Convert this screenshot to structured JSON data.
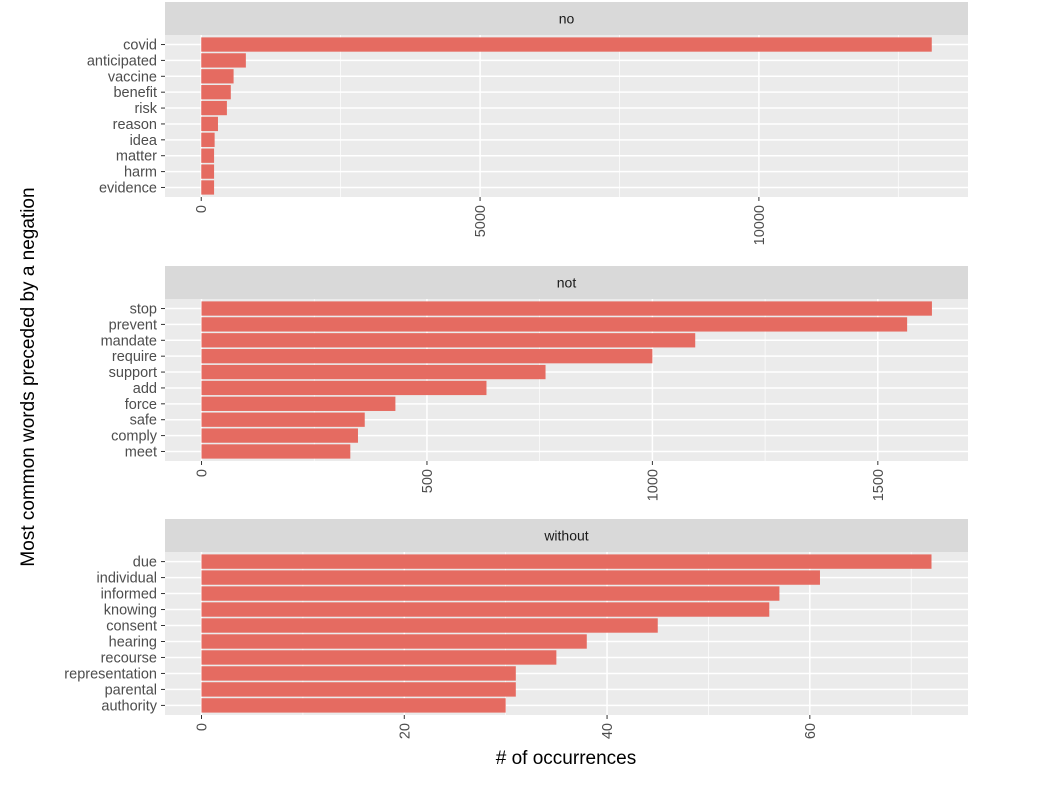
{
  "chart_data": {
    "type": "bar",
    "orientation": "horizontal",
    "ylabel": "Most common words preceded by a negation",
    "xlabel": "# of occurrences",
    "bar_color": "#E56B61",
    "panel_bg": "#EBEBEB",
    "strip_bg": "#D9D9D9",
    "grid": true,
    "facets": [
      {
        "title": "no",
        "categories": [
          "covid",
          "anticipated",
          "vaccine",
          "benefit",
          "risk",
          "reason",
          "idea",
          "matter",
          "harm",
          "evidence"
        ],
        "values": [
          13100,
          800,
          580,
          530,
          460,
          300,
          240,
          230,
          230,
          230
        ],
        "xlim": [
          -650,
          13750
        ],
        "xticks": [
          0,
          5000,
          10000
        ]
      },
      {
        "title": "not",
        "categories": [
          "stop",
          "prevent",
          "mandate",
          "require",
          "support",
          "add",
          "force",
          "safe",
          "comply",
          "meet"
        ],
        "values": [
          1620,
          1565,
          1095,
          1000,
          763,
          632,
          430,
          362,
          347,
          330
        ],
        "xlim": [
          -81,
          1700
        ],
        "xticks": [
          0,
          500,
          1000,
          1500
        ]
      },
      {
        "title": "without",
        "categories": [
          "due",
          "individual",
          "informed",
          "knowing",
          "consent",
          "hearing",
          "recourse",
          "representation",
          "parental",
          "authority"
        ],
        "values": [
          72,
          61,
          57,
          56,
          45,
          38,
          35,
          31,
          31,
          30
        ],
        "xlim": [
          -3.6,
          75.6
        ],
        "xticks": [
          0,
          20,
          40,
          60
        ]
      }
    ]
  }
}
